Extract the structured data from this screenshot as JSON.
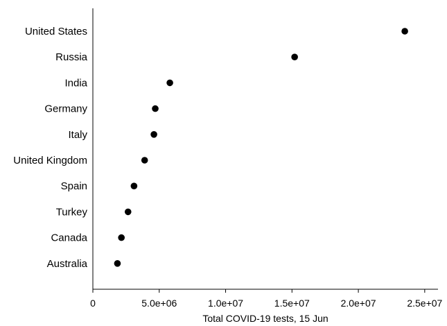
{
  "chart_data": {
    "type": "scatter",
    "orientation": "horizontal dot plot",
    "title": "",
    "xlabel": "Total COVID-19 tests, 15 Jun",
    "ylabel": "",
    "xlim": [
      0,
      26000000
    ],
    "x_ticks": [
      {
        "value": 0,
        "label": "0"
      },
      {
        "value": 5000000,
        "label": "5.0e+06"
      },
      {
        "value": 10000000,
        "label": "1.0e+07"
      },
      {
        "value": 15000000,
        "label": "1.5e+07"
      },
      {
        "value": 20000000,
        "label": "2.0e+07"
      },
      {
        "value": 25000000,
        "label": "2.5e+07"
      }
    ],
    "grid": false,
    "points": [
      {
        "category": "United States",
        "value": 23500000
      },
      {
        "category": "Russia",
        "value": 15200000
      },
      {
        "category": "India",
        "value": 5800000
      },
      {
        "category": "Germany",
        "value": 4700000
      },
      {
        "category": "Italy",
        "value": 4600000
      },
      {
        "category": "United Kingdom",
        "value": 3900000
      },
      {
        "category": "Spain",
        "value": 3100000
      },
      {
        "category": "Turkey",
        "value": 2650000
      },
      {
        "category": "Canada",
        "value": 2150000
      },
      {
        "category": "Australia",
        "value": 1850000
      }
    ],
    "marker_color": "#000000"
  }
}
